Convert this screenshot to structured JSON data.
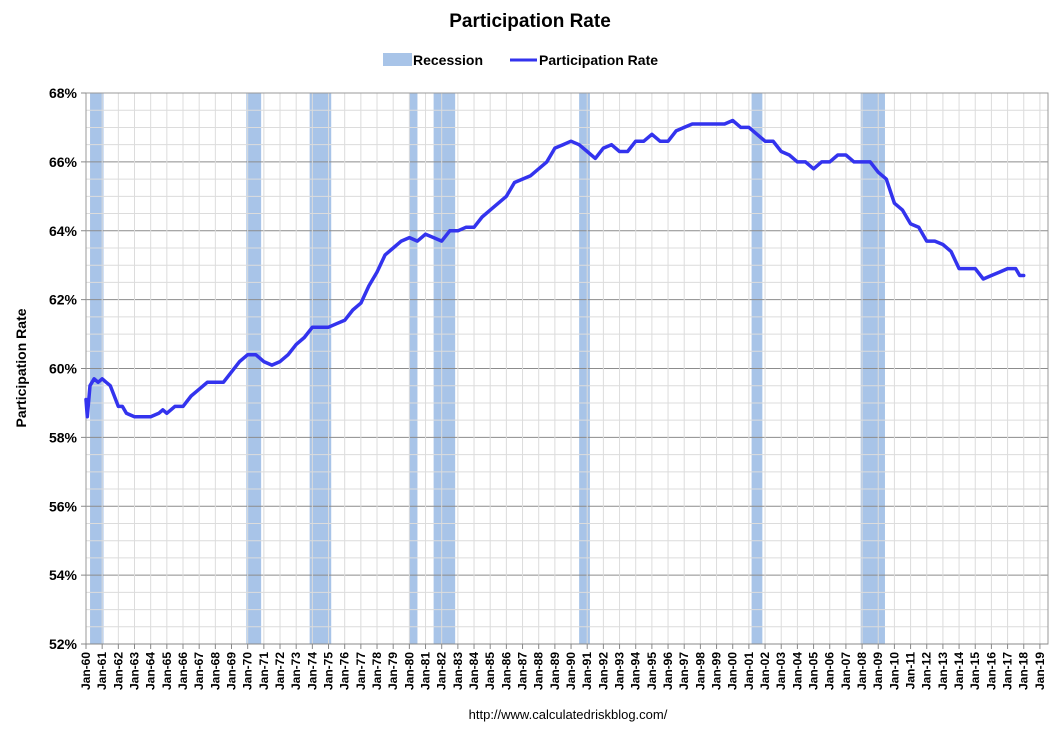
{
  "chart_data": {
    "type": "line",
    "title": "Participation Rate",
    "ylabel": "Participation Rate",
    "xlabel": "",
    "source": "http://www.calculatedriskblog.com/",
    "ylim": [
      52,
      68
    ],
    "yticks": [
      52,
      54,
      56,
      58,
      60,
      62,
      64,
      66,
      68
    ],
    "ytick_labels": [
      "52%",
      "54%",
      "56%",
      "58%",
      "60%",
      "62%",
      "64%",
      "66%",
      "68%"
    ],
    "x_range": [
      1960,
      2019.5
    ],
    "xtick_labels": [
      "Jan-60",
      "Jan-61",
      "Jan-62",
      "Jan-63",
      "Jan-64",
      "Jan-65",
      "Jan-66",
      "Jan-67",
      "Jan-68",
      "Jan-69",
      "Jan-70",
      "Jan-71",
      "Jan-72",
      "Jan-73",
      "Jan-74",
      "Jan-75",
      "Jan-76",
      "Jan-77",
      "Jan-78",
      "Jan-79",
      "Jan-80",
      "Jan-81",
      "Jan-82",
      "Jan-83",
      "Jan-84",
      "Jan-85",
      "Jan-86",
      "Jan-87",
      "Jan-88",
      "Jan-89",
      "Jan-90",
      "Jan-91",
      "Jan-92",
      "Jan-93",
      "Jan-94",
      "Jan-95",
      "Jan-96",
      "Jan-97",
      "Jan-98",
      "Jan-99",
      "Jan-00",
      "Jan-01",
      "Jan-02",
      "Jan-03",
      "Jan-04",
      "Jan-05",
      "Jan-06",
      "Jan-07",
      "Jan-08",
      "Jan-09",
      "Jan-10",
      "Jan-11",
      "Jan-12",
      "Jan-13",
      "Jan-14",
      "Jan-15",
      "Jan-16",
      "Jan-17",
      "Jan-18",
      "Jan-19"
    ],
    "grid": true,
    "legend": {
      "position": "top",
      "items": [
        {
          "name": "Recession",
          "type": "band",
          "color": "#a8c4e8"
        },
        {
          "name": "Participation Rate",
          "type": "line",
          "color": "#3333ee"
        }
      ]
    },
    "recessions": [
      {
        "start": "Apr-60",
        "end": "Feb-61"
      },
      {
        "start": "Dec-69",
        "end": "Nov-70"
      },
      {
        "start": "Nov-73",
        "end": "Mar-75"
      },
      {
        "start": "Jan-80",
        "end": "Jul-80"
      },
      {
        "start": "Jul-81",
        "end": "Nov-82"
      },
      {
        "start": "Jul-90",
        "end": "Mar-91"
      },
      {
        "start": "Mar-01",
        "end": "Nov-01"
      },
      {
        "start": "Dec-07",
        "end": "Jun-09"
      }
    ],
    "series": [
      {
        "name": "Participation Rate",
        "color": "#3333ee",
        "points": [
          [
            "Jan-60",
            59.1
          ],
          [
            "Feb-60",
            58.6
          ],
          [
            "Apr-60",
            59.5
          ],
          [
            "Jul-60",
            59.7
          ],
          [
            "Oct-60",
            59.6
          ],
          [
            "Jan-61",
            59.7
          ],
          [
            "Apr-61",
            59.6
          ],
          [
            "Jul-61",
            59.5
          ],
          [
            "Oct-61",
            59.2
          ],
          [
            "Jan-62",
            58.9
          ],
          [
            "Apr-62",
            58.9
          ],
          [
            "Jul-62",
            58.7
          ],
          [
            "Jan-63",
            58.6
          ],
          [
            "Jul-63",
            58.6
          ],
          [
            "Jan-64",
            58.6
          ],
          [
            "Jul-64",
            58.7
          ],
          [
            "Oct-64",
            58.8
          ],
          [
            "Jan-65",
            58.7
          ],
          [
            "Jul-65",
            58.9
          ],
          [
            "Jan-66",
            58.9
          ],
          [
            "Jul-66",
            59.2
          ],
          [
            "Jan-67",
            59.4
          ],
          [
            "Jul-67",
            59.6
          ],
          [
            "Jan-68",
            59.6
          ],
          [
            "Jul-68",
            59.6
          ],
          [
            "Jan-69",
            59.9
          ],
          [
            "Jul-69",
            60.2
          ],
          [
            "Jan-70",
            60.4
          ],
          [
            "Jul-70",
            60.4
          ],
          [
            "Jan-71",
            60.2
          ],
          [
            "Jul-71",
            60.1
          ],
          [
            "Jan-72",
            60.2
          ],
          [
            "Jul-72",
            60.4
          ],
          [
            "Jan-73",
            60.7
          ],
          [
            "Jul-73",
            60.9
          ],
          [
            "Jan-74",
            61.2
          ],
          [
            "Jul-74",
            61.2
          ],
          [
            "Jan-75",
            61.2
          ],
          [
            "Jul-75",
            61.3
          ],
          [
            "Jan-76",
            61.4
          ],
          [
            "Jul-76",
            61.7
          ],
          [
            "Jan-77",
            61.9
          ],
          [
            "Jul-77",
            62.4
          ],
          [
            "Jan-78",
            62.8
          ],
          [
            "Jul-78",
            63.3
          ],
          [
            "Jan-79",
            63.5
          ],
          [
            "Jul-79",
            63.7
          ],
          [
            "Jan-80",
            63.8
          ],
          [
            "Jul-80",
            63.7
          ],
          [
            "Jan-81",
            63.9
          ],
          [
            "Jul-81",
            63.8
          ],
          [
            "Jan-82",
            63.7
          ],
          [
            "Jul-82",
            64.0
          ],
          [
            "Jan-83",
            64.0
          ],
          [
            "Jul-83",
            64.1
          ],
          [
            "Jan-84",
            64.1
          ],
          [
            "Jul-84",
            64.4
          ],
          [
            "Jan-85",
            64.6
          ],
          [
            "Jul-85",
            64.8
          ],
          [
            "Jan-86",
            65.0
          ],
          [
            "Jul-86",
            65.4
          ],
          [
            "Jan-87",
            65.5
          ],
          [
            "Jul-87",
            65.6
          ],
          [
            "Jan-88",
            65.8
          ],
          [
            "Jul-88",
            66.0
          ],
          [
            "Jan-89",
            66.4
          ],
          [
            "Jul-89",
            66.5
          ],
          [
            "Jan-90",
            66.6
          ],
          [
            "Jul-90",
            66.5
          ],
          [
            "Jan-91",
            66.3
          ],
          [
            "Jul-91",
            66.1
          ],
          [
            "Jan-92",
            66.4
          ],
          [
            "Jul-92",
            66.5
          ],
          [
            "Jan-93",
            66.3
          ],
          [
            "Jul-93",
            66.3
          ],
          [
            "Jan-94",
            66.6
          ],
          [
            "Jul-94",
            66.6
          ],
          [
            "Jan-95",
            66.8
          ],
          [
            "Jul-95",
            66.6
          ],
          [
            "Jan-96",
            66.6
          ],
          [
            "Jul-96",
            66.9
          ],
          [
            "Jan-97",
            67.0
          ],
          [
            "Jul-97",
            67.1
          ],
          [
            "Jan-98",
            67.1
          ],
          [
            "Jul-98",
            67.1
          ],
          [
            "Jan-99",
            67.1
          ],
          [
            "Jul-99",
            67.1
          ],
          [
            "Jan-00",
            67.2
          ],
          [
            "Jul-00",
            67.0
          ],
          [
            "Jan-01",
            67.0
          ],
          [
            "Jul-01",
            66.8
          ],
          [
            "Jan-02",
            66.6
          ],
          [
            "Jul-02",
            66.6
          ],
          [
            "Jan-03",
            66.3
          ],
          [
            "Jul-03",
            66.2
          ],
          [
            "Jan-04",
            66.0
          ],
          [
            "Jul-04",
            66.0
          ],
          [
            "Jan-05",
            65.8
          ],
          [
            "Jul-05",
            66.0
          ],
          [
            "Jan-06",
            66.0
          ],
          [
            "Jul-06",
            66.2
          ],
          [
            "Jan-07",
            66.2
          ],
          [
            "Jul-07",
            66.0
          ],
          [
            "Jan-08",
            66.0
          ],
          [
            "Jul-08",
            66.0
          ],
          [
            "Jan-09",
            65.7
          ],
          [
            "Jul-09",
            65.5
          ],
          [
            "Jan-10",
            64.8
          ],
          [
            "Jul-10",
            64.6
          ],
          [
            "Jan-11",
            64.2
          ],
          [
            "Jul-11",
            64.1
          ],
          [
            "Jan-12",
            63.7
          ],
          [
            "Jul-12",
            63.7
          ],
          [
            "Jan-13",
            63.6
          ],
          [
            "Jul-13",
            63.4
          ],
          [
            "Jan-14",
            62.9
          ],
          [
            "Jul-14",
            62.9
          ],
          [
            "Jan-15",
            62.9
          ],
          [
            "Jul-15",
            62.6
          ],
          [
            "Jan-16",
            62.7
          ],
          [
            "Jul-16",
            62.8
          ],
          [
            "Jan-17",
            62.9
          ],
          [
            "Jul-17",
            62.9
          ],
          [
            "Oct-17",
            62.7
          ],
          [
            "Jan-18",
            62.7
          ]
        ]
      }
    ]
  }
}
